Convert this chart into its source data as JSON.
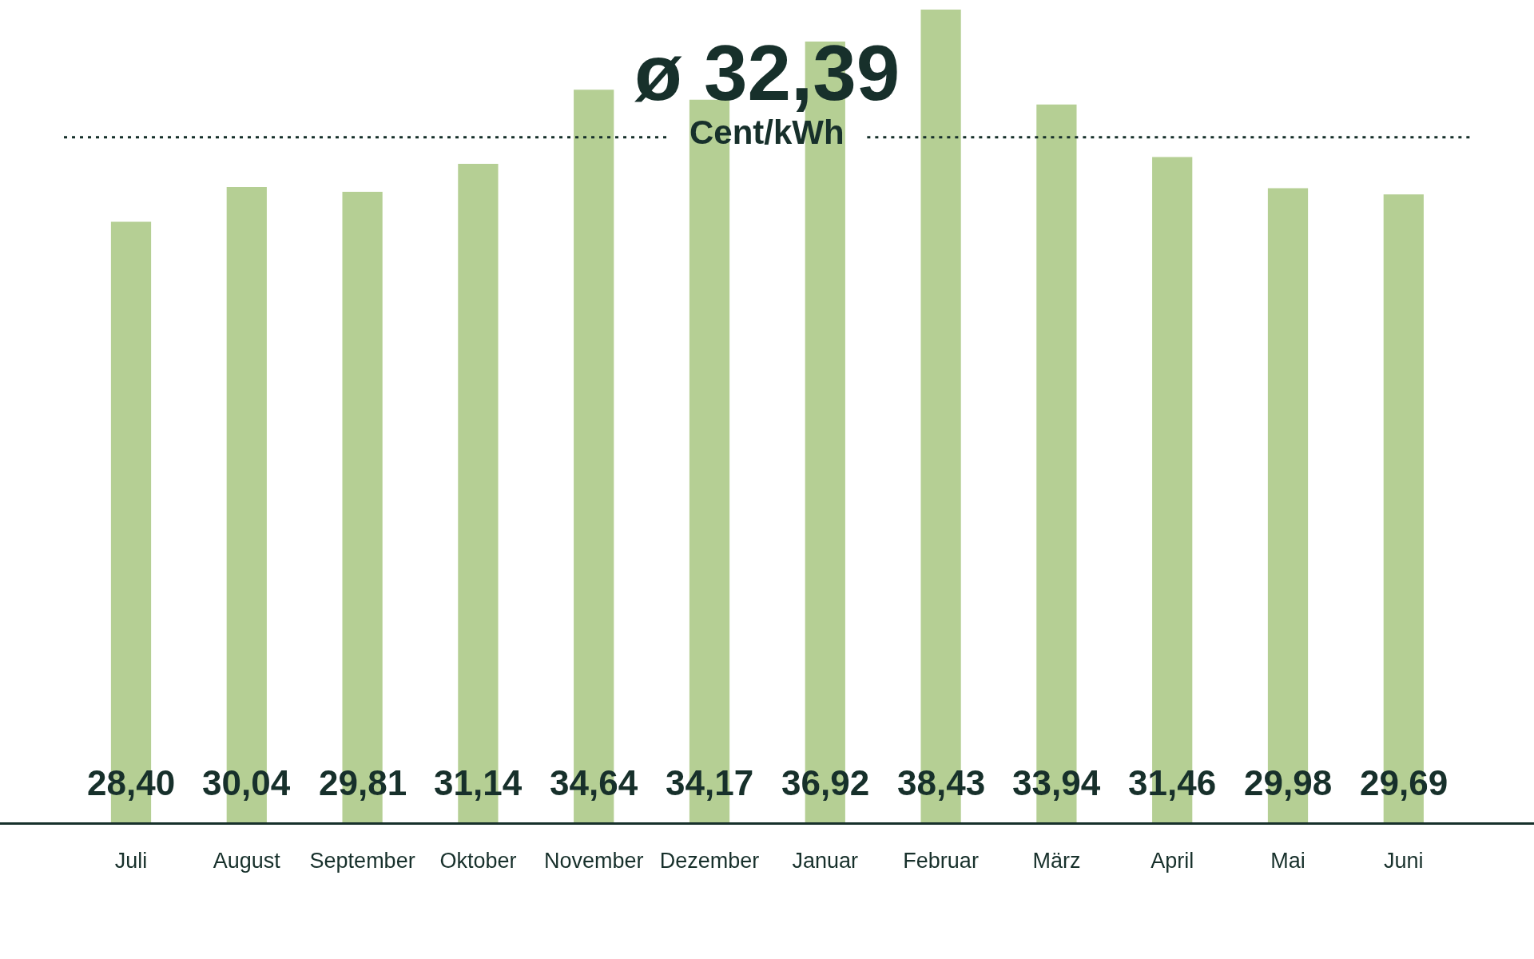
{
  "chart_data": {
    "type": "bar",
    "categories": [
      "Juli",
      "August",
      "September",
      "Oktober",
      "November",
      "Dezember",
      "Januar",
      "Februar",
      "März",
      "April",
      "Mai",
      "Juni"
    ],
    "values": [
      28.4,
      30.04,
      29.81,
      31.14,
      34.64,
      34.17,
      36.92,
      38.43,
      33.94,
      31.46,
      29.98,
      29.69
    ],
    "value_labels": [
      "28,40",
      "30,04",
      "29,81",
      "31,14",
      "34,64",
      "34,17",
      "36,92",
      "38,43",
      "33,94",
      "31,46",
      "29,98",
      "29,69"
    ],
    "color": "#b5cf94",
    "ref_lines": [
      {
        "axis": "y",
        "value": 32.39,
        "label": "ø 32,39",
        "color": "#17302b",
        "line_style": "dotted"
      }
    ],
    "annotations": [
      "Cent/kWh"
    ],
    "tick_labels": "x"
  }
}
